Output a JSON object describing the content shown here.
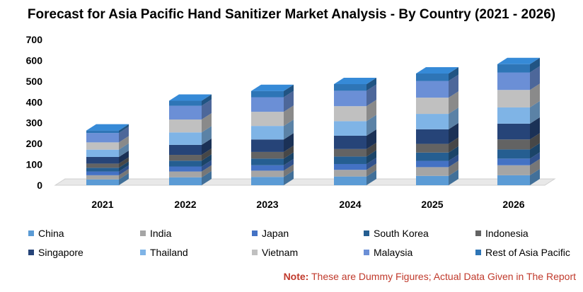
{
  "chart_data": {
    "type": "bar",
    "stacked": true,
    "title": "Forecast for Asia Pacific Hand Sanitizer Market Analysis - By Country (2021 - 2026)",
    "xlabel": "",
    "ylabel": "",
    "ylim": [
      0,
      700
    ],
    "yticks": [
      "0",
      "100",
      "200",
      "300",
      "400",
      "500",
      "600",
      "700"
    ],
    "categories": [
      "2021",
      "2022",
      "2023",
      "2024",
      "2025",
      "2026"
    ],
    "grid": false,
    "legend_position": "bottom",
    "series": [
      {
        "name": "China",
        "color": "#5b9bd5",
        "values": [
          28,
          38,
          40,
          42,
          45,
          48
        ]
      },
      {
        "name": "India",
        "color": "#a5a5a5",
        "values": [
          20,
          28,
          30,
          32,
          42,
          48
        ]
      },
      {
        "name": "Japan",
        "color": "#4472c4",
        "values": [
          18,
          24,
          26,
          28,
          30,
          32
        ]
      },
      {
        "name": "South Korea",
        "color": "#255e91",
        "values": [
          18,
          28,
          32,
          36,
          40,
          44
        ]
      },
      {
        "name": "Indonesia",
        "color": "#636363",
        "values": [
          20,
          28,
          32,
          36,
          42,
          48
        ]
      },
      {
        "name": "Singapore",
        "color": "#264478",
        "values": [
          32,
          48,
          60,
          64,
          70,
          76
        ]
      },
      {
        "name": "Thailand",
        "color": "#7fb4e6",
        "values": [
          35,
          60,
          65,
          70,
          74,
          78
        ]
      },
      {
        "name": "Vietnam",
        "color": "#c0c0c0",
        "values": [
          35,
          62,
          68,
          72,
          78,
          84
        ]
      },
      {
        "name": "Malaysia",
        "color": "#6b8fd6",
        "values": [
          45,
          66,
          70,
          74,
          80,
          84
        ]
      },
      {
        "name": "Rest of Asia Pacific",
        "color": "#2e75b6",
        "values": [
          12,
          24,
          30,
          32,
          36,
          40
        ]
      }
    ]
  },
  "note": {
    "prefix": "Note:",
    "text": " These are Dummy Figures; Actual Data Given in The Report"
  }
}
